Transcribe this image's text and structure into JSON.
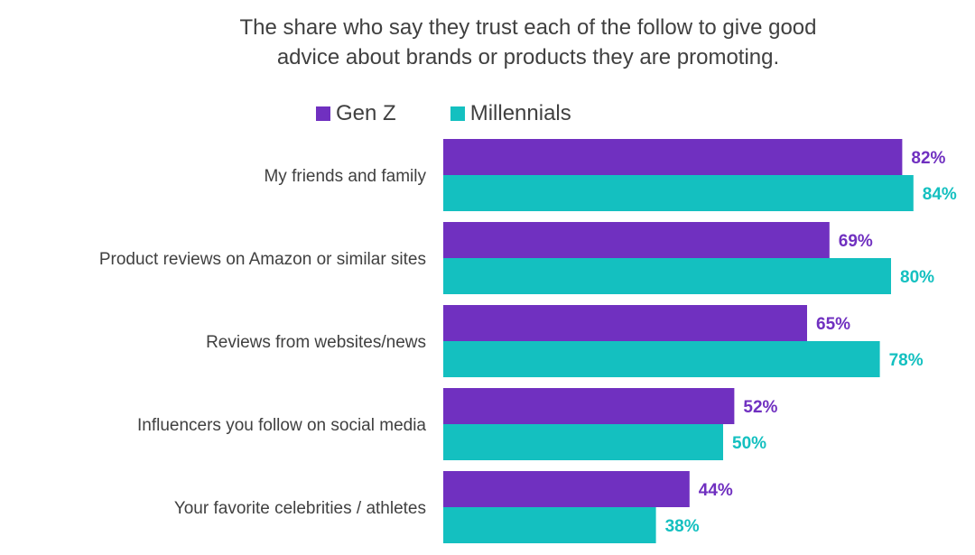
{
  "chart_data": {
    "type": "bar",
    "orientation": "horizontal",
    "title_lines": [
      "The share who say they trust each of the follow to give good",
      "advice about brands or products they are promoting."
    ],
    "categories": [
      "My friends and family",
      "Product reviews on Amazon or similar sites",
      "Reviews from websites/news",
      "Influencers you follow on social media",
      "Your favorite celebrities / athletes"
    ],
    "series": [
      {
        "name": "Gen Z",
        "color": "#7030c0",
        "values": [
          82,
          69,
          65,
          52,
          44
        ]
      },
      {
        "name": "Millennials",
        "color": "#14c0c0",
        "values": [
          84,
          80,
          78,
          50,
          38
        ]
      }
    ],
    "value_suffix": "%",
    "xlim": [
      0,
      100
    ],
    "legend_position": "top",
    "grid": false
  }
}
